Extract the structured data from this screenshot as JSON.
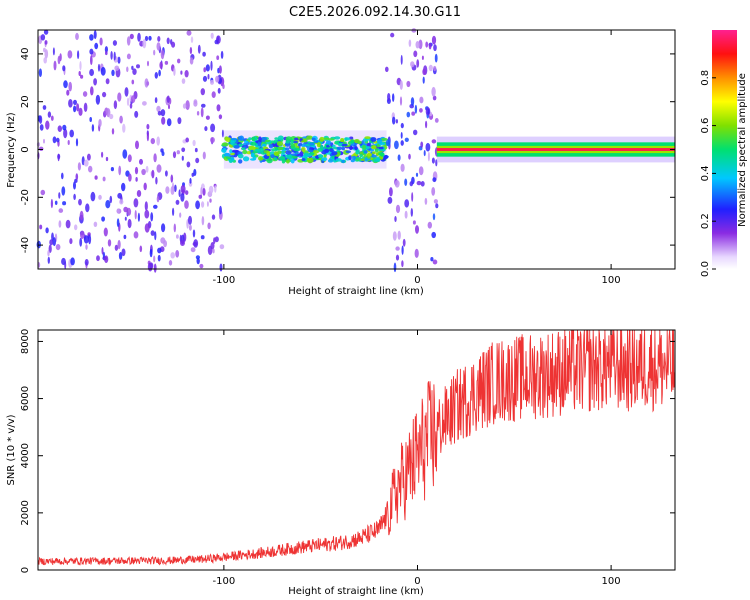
{
  "title": "C2E5.2026.092.14.30.G11",
  "chart_data": [
    {
      "type": "heatmap",
      "name": "spectrogram",
      "xlabel": "Height of straight line (km)",
      "ylabel": "Frequency (Hz)",
      "xlim": [
        -196,
        133
      ],
      "ylim": [
        -50,
        50
      ],
      "xticks": [
        -100,
        0,
        100
      ],
      "yticks": [
        -40,
        -20,
        0,
        20,
        40
      ],
      "colorbar": {
        "label": "Normalized spectral amplitude",
        "range": [
          0,
          1
        ],
        "ticks": [
          "0.0",
          "0.2",
          "0.4",
          "0.6",
          "0.8"
        ],
        "tick_values": [
          0.0,
          0.2,
          0.4,
          0.6,
          0.8
        ]
      },
      "regions": [
        {
          "from": -196,
          "to": -100,
          "kind": "noise",
          "intensity": 0.22
        },
        {
          "from": -100,
          "to": -16,
          "kind": "band",
          "intensity": 0.45,
          "freq_halfwidth": 5
        },
        {
          "from": -16,
          "to": 10,
          "kind": "noise",
          "intensity": 0.25
        },
        {
          "from": 10,
          "to": 133,
          "kind": "line",
          "intensity": 0.95,
          "freq_halfwidth": 3
        }
      ]
    },
    {
      "type": "line",
      "name": "snr",
      "xlabel": "Height of straight line (km)",
      "ylabel": "SNR (10 * v/v)",
      "xlim": [
        -196,
        133
      ],
      "ylim": [
        0,
        8400
      ],
      "xticks": [
        -100,
        0,
        100
      ],
      "yticks": [
        0,
        2000,
        4000,
        6000,
        8000
      ],
      "color": "#ee3333",
      "x": [
        -196,
        -160,
        -130,
        -110,
        -100,
        -80,
        -60,
        -40,
        -30,
        -20,
        -15,
        -10,
        -5,
        0,
        5,
        10,
        15,
        20,
        30,
        40,
        50,
        60,
        80,
        100,
        110,
        120,
        133
      ],
      "y": [
        300,
        320,
        330,
        380,
        450,
        600,
        800,
        950,
        1100,
        1400,
        2000,
        2900,
        3400,
        4000,
        4500,
        4900,
        5300,
        5700,
        6200,
        6600,
        6700,
        6800,
        7000,
        7200,
        7100,
        7200,
        7100
      ]
    }
  ]
}
